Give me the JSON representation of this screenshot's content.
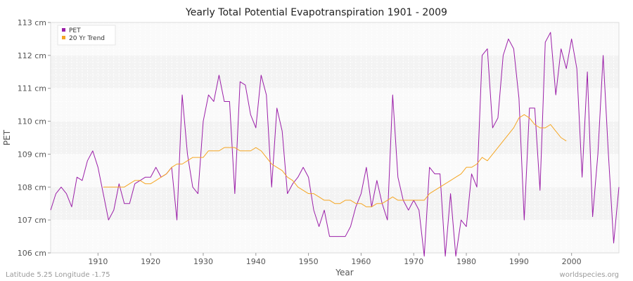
{
  "chart_data": {
    "type": "line",
    "title": "Yearly Total Potential Evapotranspiration 1901 - 2009",
    "xlabel": "Year",
    "ylabel": "PET",
    "xlim": [
      1901,
      2009
    ],
    "ylim": [
      106,
      113
    ],
    "x_ticks": [
      {
        "value": 1910,
        "label": "1910"
      },
      {
        "value": 1920,
        "label": "1920"
      },
      {
        "value": 1930,
        "label": "1930"
      },
      {
        "value": 1940,
        "label": "1940"
      },
      {
        "value": 1950,
        "label": "1950"
      },
      {
        "value": 1960,
        "label": "1960"
      },
      {
        "value": 1970,
        "label": "1970"
      },
      {
        "value": 1980,
        "label": "1980"
      },
      {
        "value": 1990,
        "label": "1990"
      },
      {
        "value": 2000,
        "label": "2000"
      }
    ],
    "y_ticks": [
      {
        "value": 106,
        "label": "106 cm"
      },
      {
        "value": 107,
        "label": "107 cm"
      },
      {
        "value": 108,
        "label": "108 cm"
      },
      {
        "value": 109,
        "label": "109 cm"
      },
      {
        "value": 110,
        "label": "110 cm"
      },
      {
        "value": 111,
        "label": "111 cm"
      },
      {
        "value": 112,
        "label": "112 cm"
      },
      {
        "value": 113,
        "label": "113 cm"
      }
    ],
    "grid": true,
    "legend_position": "top-left",
    "series": [
      {
        "name": "PET",
        "color": "#9b1fa8",
        "x_start": 1901,
        "values": [
          107.3,
          107.8,
          108.0,
          107.8,
          107.4,
          108.3,
          108.2,
          108.8,
          109.1,
          108.6,
          107.8,
          107.0,
          107.3,
          108.1,
          107.5,
          107.5,
          108.1,
          108.2,
          108.3,
          108.3,
          108.6,
          108.3,
          108.4,
          108.6,
          107.0,
          110.8,
          109.0,
          108.0,
          107.8,
          110.0,
          110.8,
          110.6,
          111.4,
          110.6,
          110.6,
          107.8,
          111.2,
          111.1,
          110.2,
          109.8,
          111.4,
          110.8,
          108.0,
          110.4,
          109.7,
          107.8,
          108.1,
          108.3,
          108.6,
          108.3,
          107.3,
          106.8,
          107.3,
          106.5,
          106.5,
          106.5,
          106.5,
          106.8,
          107.4,
          107.8,
          108.6,
          107.4,
          108.2,
          107.5,
          107.0,
          110.8,
          108.3,
          107.6,
          107.3,
          107.6,
          107.3,
          105.9,
          108.6,
          108.4,
          108.4,
          105.9,
          107.8,
          105.9,
          107.0,
          106.8,
          108.4,
          108.0,
          112.0,
          112.2,
          109.8,
          110.1,
          112.0,
          112.5,
          112.2,
          110.7,
          107.0,
          110.4,
          110.4,
          107.9,
          112.4,
          112.7,
          110.8,
          112.2,
          111.6,
          112.5,
          111.6,
          108.3,
          111.5,
          107.1,
          109.0,
          112.0,
          109.0,
          106.3,
          108.0
        ]
      },
      {
        "name": "20 Yr Trend",
        "color": "#f5a623",
        "x_start": 1911,
        "values": [
          108.0,
          108.0,
          108.0,
          108.0,
          108.0,
          108.1,
          108.2,
          108.2,
          108.1,
          108.1,
          108.2,
          108.3,
          108.4,
          108.6,
          108.7,
          108.7,
          108.8,
          108.9,
          108.9,
          108.9,
          109.1,
          109.1,
          109.1,
          109.2,
          109.2,
          109.2,
          109.1,
          109.1,
          109.1,
          109.2,
          109.1,
          108.9,
          108.7,
          108.6,
          108.5,
          108.3,
          108.2,
          108.0,
          107.9,
          107.8,
          107.8,
          107.7,
          107.6,
          107.6,
          107.5,
          107.5,
          107.6,
          107.6,
          107.5,
          107.5,
          107.4,
          107.4,
          107.5,
          107.5,
          107.6,
          107.7,
          107.6,
          107.6,
          107.6,
          107.6,
          107.6,
          107.6,
          107.8,
          107.9,
          108.0,
          108.1,
          108.2,
          108.3,
          108.4,
          108.6,
          108.6,
          108.7,
          108.9,
          108.8,
          109.0,
          109.2,
          109.4,
          109.6,
          109.8,
          110.1,
          110.2,
          110.1,
          109.9,
          109.8,
          109.8,
          109.9,
          109.7,
          109.5,
          109.4
        ]
      }
    ]
  },
  "footer": {
    "left": "Latitude 5.25 Longitude -1.75",
    "right": "worldspecies.org"
  }
}
